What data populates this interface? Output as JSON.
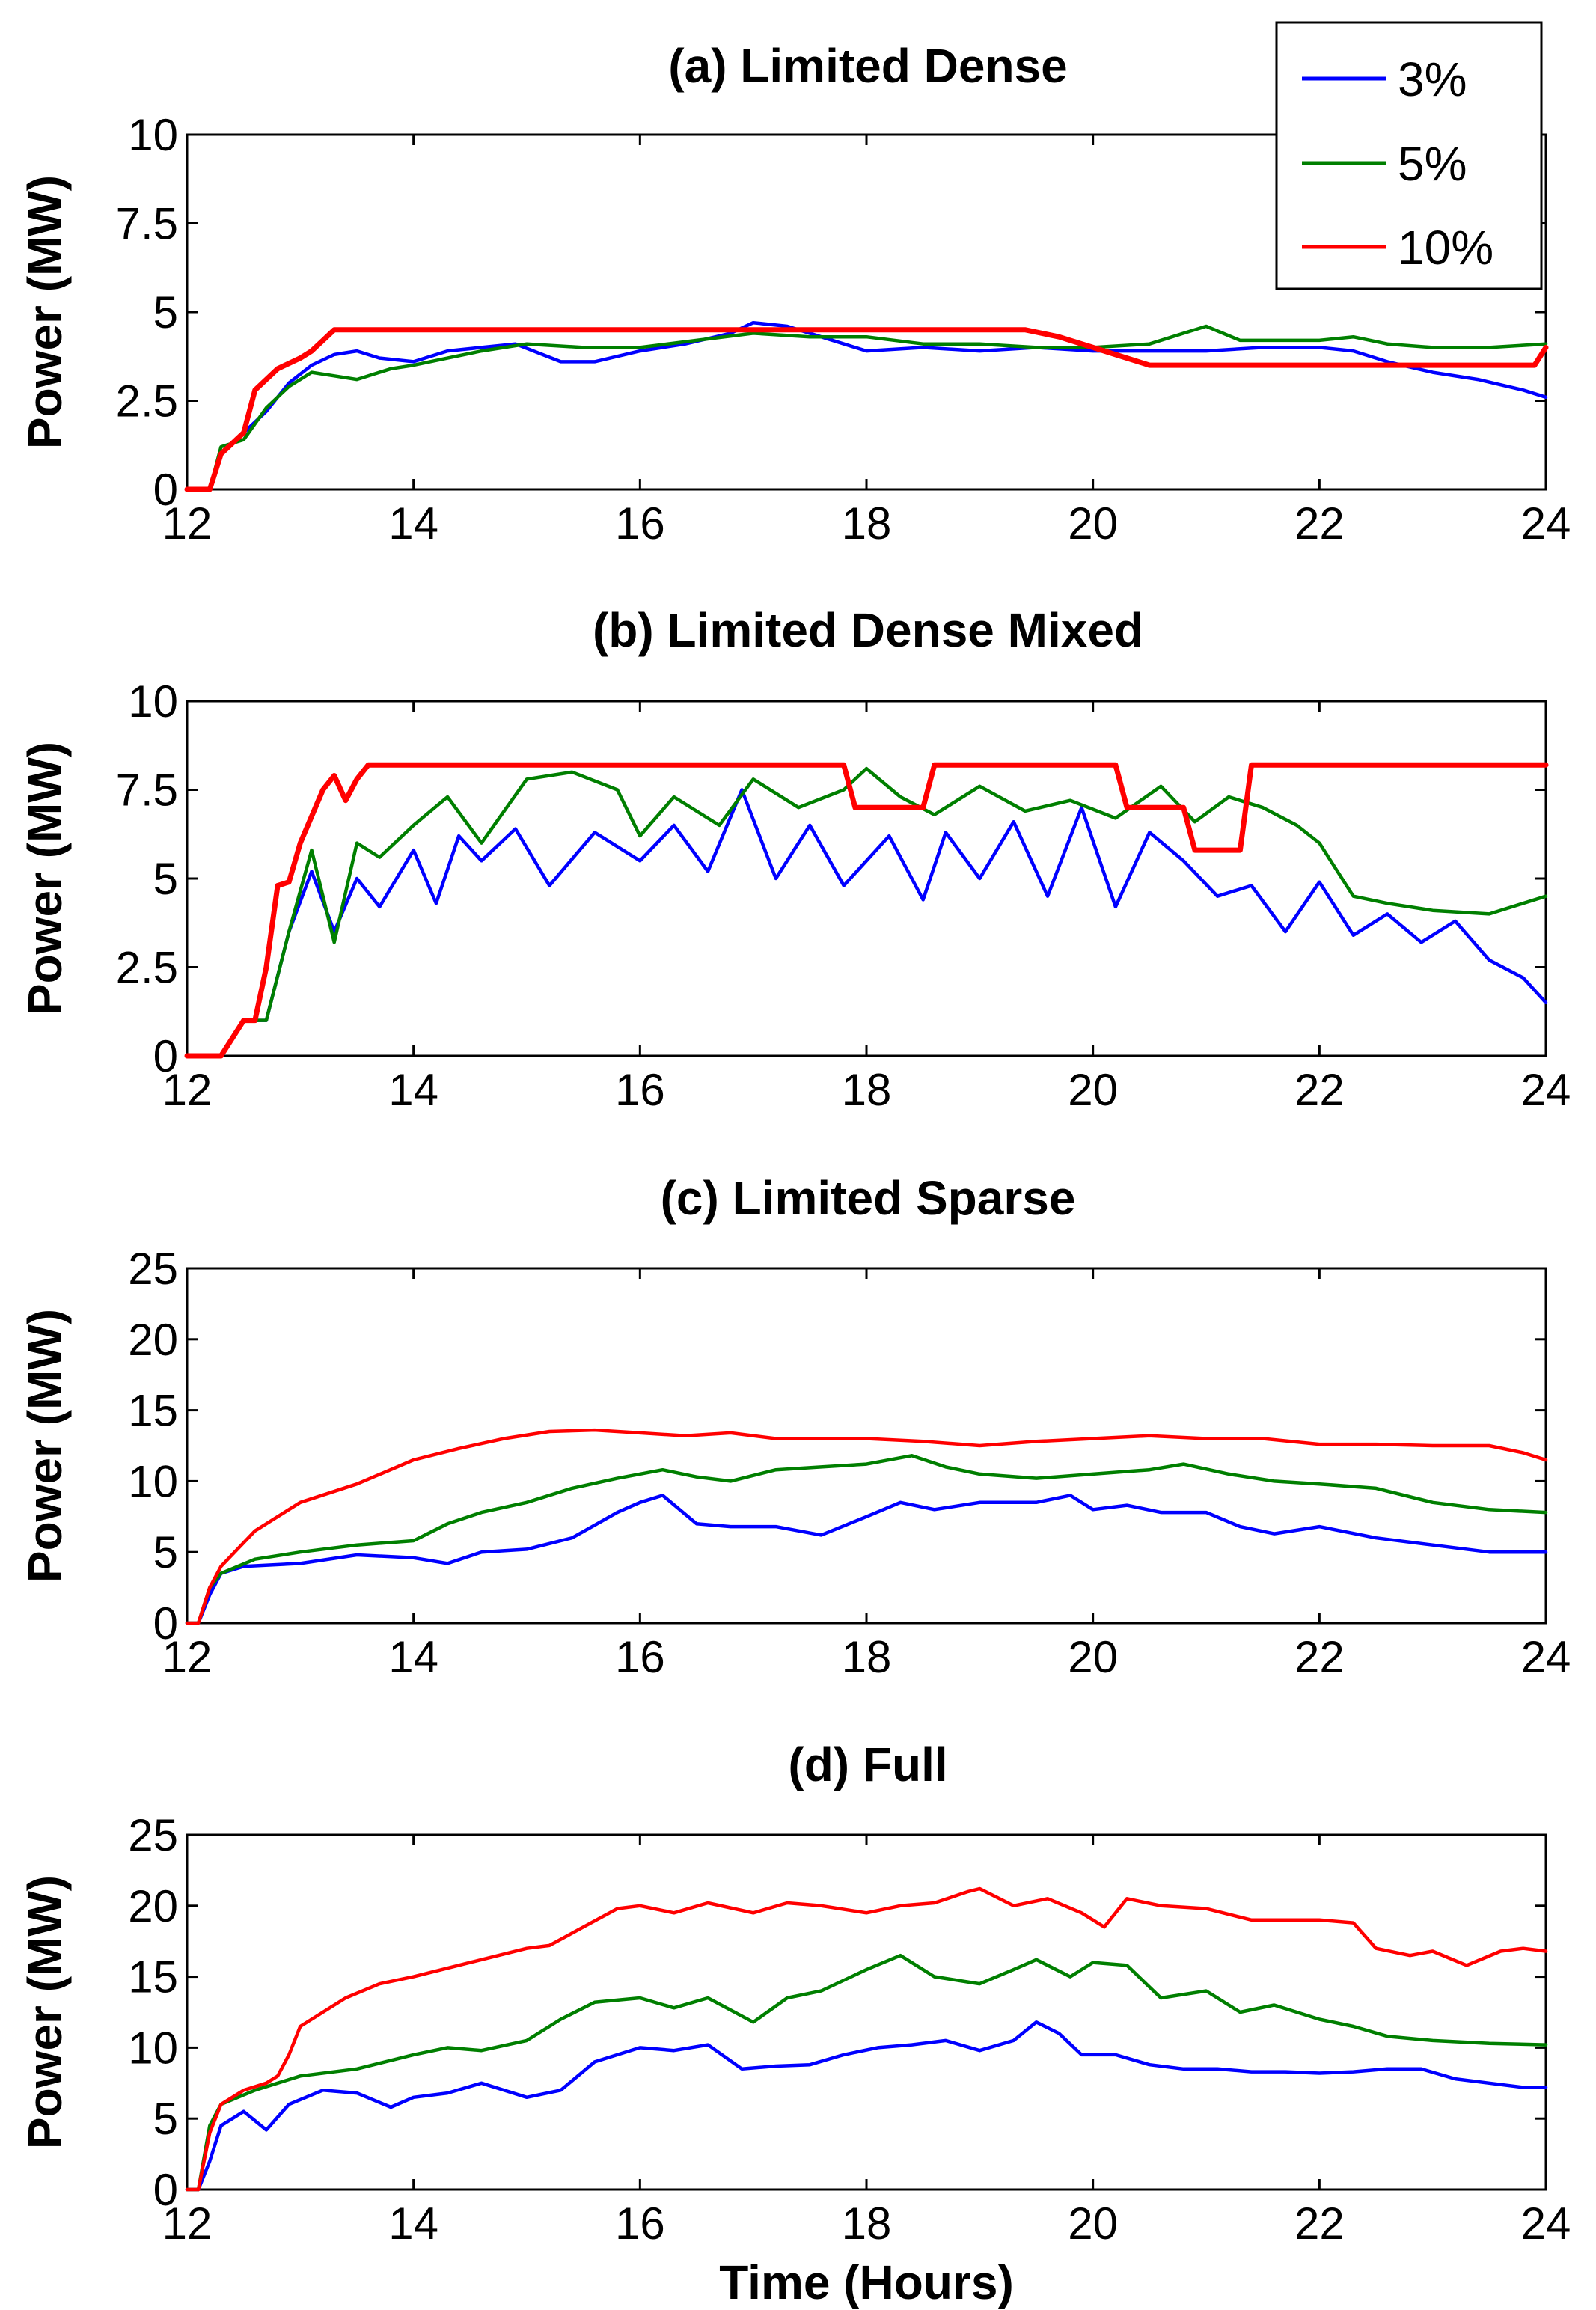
{
  "chart_data": [
    {
      "id": "a",
      "type": "line",
      "title": "(a) Limited Dense",
      "xlabel": "",
      "ylabel": "Power (MW)",
      "xlim": [
        12,
        24
      ],
      "ylim": [
        0,
        10
      ],
      "xticks": [
        "12",
        "14",
        "16",
        "18",
        "20",
        "22",
        "24"
      ],
      "yticks": [
        "0",
        "2.5",
        "5",
        "7.5",
        "10"
      ],
      "series": [
        {
          "name": "3%",
          "color": "#0000ff",
          "x": [
            12.0,
            12.2,
            12.3,
            12.5,
            12.7,
            12.9,
            13.1,
            13.3,
            13.5,
            13.7,
            14.0,
            14.3,
            14.6,
            14.9,
            15.3,
            15.6,
            16.0,
            16.4,
            16.8,
            17.0,
            17.3,
            17.6,
            18.0,
            18.5,
            19.0,
            19.5,
            20.0,
            20.5,
            21.0,
            21.5,
            22.0,
            22.3,
            22.6,
            23.0,
            23.4,
            23.8,
            24.0
          ],
          "values": [
            0,
            0,
            1.0,
            1.6,
            2.2,
            3.0,
            3.5,
            3.8,
            3.9,
            3.7,
            3.6,
            3.9,
            4.0,
            4.1,
            3.6,
            3.6,
            3.9,
            4.1,
            4.4,
            4.7,
            4.6,
            4.3,
            3.9,
            4.0,
            3.9,
            4.0,
            3.9,
            3.9,
            3.9,
            4.0,
            4.0,
            3.9,
            3.6,
            3.3,
            3.1,
            2.8,
            2.6
          ]
        },
        {
          "name": "5%",
          "color": "#007f00",
          "x": [
            12.0,
            12.2,
            12.3,
            12.5,
            12.7,
            12.9,
            13.1,
            13.3,
            13.5,
            13.8,
            14.0,
            14.3,
            14.6,
            15.0,
            15.5,
            16.0,
            16.5,
            17.0,
            17.5,
            18.0,
            18.5,
            19.0,
            19.5,
            20.0,
            20.5,
            20.8,
            21.0,
            21.3,
            21.7,
            22.0,
            22.3,
            22.6,
            23.0,
            23.5,
            24.0
          ],
          "values": [
            0,
            0,
            1.2,
            1.4,
            2.3,
            2.9,
            3.3,
            3.2,
            3.1,
            3.4,
            3.5,
            3.7,
            3.9,
            4.1,
            4.0,
            4.0,
            4.2,
            4.4,
            4.3,
            4.3,
            4.1,
            4.1,
            4.0,
            4.0,
            4.1,
            4.4,
            4.6,
            4.2,
            4.2,
            4.2,
            4.3,
            4.1,
            4.0,
            4.0,
            4.1
          ]
        },
        {
          "name": "10%",
          "color": "#ff0000",
          "x": [
            12.0,
            12.2,
            12.3,
            12.5,
            12.6,
            12.8,
            13.0,
            13.1,
            13.2,
            13.3,
            14.0,
            15.0,
            16.0,
            17.0,
            18.0,
            19.0,
            19.4,
            19.7,
            20.0,
            20.2,
            20.5,
            21.0,
            21.5,
            22.0,
            22.5,
            23.0,
            23.5,
            23.9,
            24.0
          ],
          "values": [
            0,
            0,
            1.0,
            1.6,
            2.8,
            3.4,
            3.7,
            3.9,
            4.2,
            4.5,
            4.5,
            4.5,
            4.5,
            4.5,
            4.5,
            4.5,
            4.5,
            4.3,
            4.0,
            3.8,
            3.5,
            3.5,
            3.5,
            3.5,
            3.5,
            3.5,
            3.5,
            3.5,
            4.0
          ]
        }
      ]
    },
    {
      "id": "b",
      "type": "line",
      "title": "(b) Limited Dense Mixed",
      "xlabel": "",
      "ylabel": "Power (MW)",
      "xlim": [
        12,
        24
      ],
      "ylim": [
        0,
        10
      ],
      "xticks": [
        "12",
        "14",
        "16",
        "18",
        "20",
        "22",
        "24"
      ],
      "yticks": [
        "0",
        "2.5",
        "5",
        "7.5",
        "10"
      ],
      "series": [
        {
          "name": "3%",
          "color": "#0000ff",
          "x": [
            12.0,
            12.3,
            12.5,
            12.7,
            12.9,
            13.1,
            13.3,
            13.5,
            13.7,
            14.0,
            14.2,
            14.4,
            14.6,
            14.9,
            15.2,
            15.6,
            16.0,
            16.3,
            16.6,
            16.9,
            17.2,
            17.5,
            17.8,
            18.0,
            18.2,
            18.5,
            18.7,
            19.0,
            19.3,
            19.6,
            19.9,
            20.2,
            20.5,
            20.8,
            21.1,
            21.4,
            21.7,
            22.0,
            22.3,
            22.6,
            22.9,
            23.2,
            23.5,
            23.8,
            24.0
          ],
          "values": [
            0,
            0,
            1.0,
            1.0,
            3.5,
            5.2,
            3.5,
            5.0,
            4.2,
            5.8,
            4.3,
            6.2,
            5.5,
            6.4,
            4.8,
            6.3,
            5.5,
            6.5,
            5.2,
            7.5,
            5.0,
            6.5,
            4.8,
            5.5,
            6.2,
            4.4,
            6.3,
            5.0,
            6.6,
            4.5,
            7.0,
            4.2,
            6.3,
            5.5,
            4.5,
            4.8,
            3.5,
            4.9,
            3.4,
            4.0,
            3.2,
            3.8,
            2.7,
            2.2,
            1.5
          ]
        },
        {
          "name": "5%",
          "color": "#007f00",
          "x": [
            12.0,
            12.3,
            12.5,
            12.7,
            12.9,
            13.1,
            13.3,
            13.5,
            13.7,
            14.0,
            14.3,
            14.6,
            15.0,
            15.4,
            15.8,
            16.0,
            16.3,
            16.7,
            17.0,
            17.4,
            17.8,
            18.0,
            18.3,
            18.6,
            19.0,
            19.4,
            19.8,
            20.2,
            20.6,
            20.9,
            21.2,
            21.5,
            21.8,
            22.0,
            22.3,
            22.6,
            23.0,
            23.5,
            23.8,
            24.0
          ],
          "values": [
            0,
            0,
            1.0,
            1.0,
            3.5,
            5.8,
            3.2,
            6.0,
            5.6,
            6.5,
            7.3,
            6.0,
            7.8,
            8.0,
            7.5,
            6.2,
            7.3,
            6.5,
            7.8,
            7.0,
            7.5,
            8.1,
            7.3,
            6.8,
            7.6,
            6.9,
            7.2,
            6.7,
            7.6,
            6.6,
            7.3,
            7.0,
            6.5,
            6.0,
            4.5,
            4.3,
            4.1,
            4.0,
            4.3,
            4.5
          ]
        },
        {
          "name": "10%",
          "color": "#ff0000",
          "x": [
            12.0,
            12.3,
            12.5,
            12.6,
            12.7,
            12.8,
            12.9,
            13.0,
            13.2,
            13.3,
            13.4,
            13.5,
            13.6,
            14.0,
            15.0,
            16.0,
            17.0,
            17.8,
            17.9,
            18.5,
            18.6,
            19.0,
            20.0,
            20.2,
            20.3,
            20.8,
            20.9,
            21.3,
            21.4,
            22.0,
            23.0,
            24.0
          ],
          "values": [
            0,
            0,
            1.0,
            1.0,
            2.5,
            4.8,
            4.9,
            6.0,
            7.5,
            7.9,
            7.2,
            7.8,
            8.2,
            8.2,
            8.2,
            8.2,
            8.2,
            8.2,
            7.0,
            7.0,
            8.2,
            8.2,
            8.2,
            8.2,
            7.0,
            7.0,
            5.8,
            5.8,
            8.2,
            8.2,
            8.2,
            8.2
          ]
        }
      ]
    },
    {
      "id": "c",
      "type": "line",
      "title": "(c) Limited Sparse",
      "xlabel": "",
      "ylabel": "Power (MW)",
      "xlim": [
        12,
        24
      ],
      "ylim": [
        0,
        25
      ],
      "xticks": [
        "12",
        "14",
        "16",
        "18",
        "20",
        "22",
        "24"
      ],
      "yticks": [
        "0",
        "5",
        "10",
        "15",
        "20",
        "25"
      ],
      "series": [
        {
          "name": "3%",
          "color": "#0000ff",
          "x": [
            12.0,
            12.1,
            12.2,
            12.3,
            12.5,
            13.0,
            13.5,
            14.0,
            14.3,
            14.6,
            15.0,
            15.4,
            15.8,
            16.0,
            16.2,
            16.5,
            16.8,
            17.2,
            17.6,
            18.0,
            18.3,
            18.6,
            19.0,
            19.5,
            19.8,
            20.0,
            20.3,
            20.6,
            21.0,
            21.3,
            21.6,
            22.0,
            22.5,
            23.0,
            23.5,
            24.0
          ],
          "values": [
            0,
            0,
            2.0,
            3.5,
            4.0,
            4.2,
            4.8,
            4.6,
            4.2,
            5.0,
            5.2,
            6.0,
            7.8,
            8.5,
            9.0,
            7.0,
            6.8,
            6.8,
            6.2,
            7.5,
            8.5,
            8.0,
            8.5,
            8.5,
            9.0,
            8.0,
            8.3,
            7.8,
            7.8,
            6.8,
            6.3,
            6.8,
            6.0,
            5.5,
            5.0,
            5.0
          ]
        },
        {
          "name": "5%",
          "color": "#007f00",
          "x": [
            12.0,
            12.1,
            12.2,
            12.3,
            12.6,
            13.0,
            13.5,
            14.0,
            14.3,
            14.6,
            15.0,
            15.4,
            15.8,
            16.2,
            16.5,
            16.8,
            17.2,
            17.6,
            18.0,
            18.4,
            18.7,
            19.0,
            19.5,
            20.0,
            20.5,
            20.8,
            21.2,
            21.6,
            22.0,
            22.5,
            23.0,
            23.5,
            24.0
          ],
          "values": [
            0,
            0,
            2.5,
            3.5,
            4.5,
            5.0,
            5.5,
            5.8,
            7.0,
            7.8,
            8.5,
            9.5,
            10.2,
            10.8,
            10.3,
            10.0,
            10.8,
            11.0,
            11.2,
            11.8,
            11.0,
            10.5,
            10.2,
            10.5,
            10.8,
            11.2,
            10.5,
            10.0,
            9.8,
            9.5,
            8.5,
            8.0,
            7.8
          ]
        },
        {
          "name": "10%",
          "color": "#ff0000",
          "x": [
            12.0,
            12.1,
            12.2,
            12.3,
            12.6,
            13.0,
            13.5,
            14.0,
            14.4,
            14.8,
            15.2,
            15.6,
            16.0,
            16.4,
            16.8,
            17.2,
            17.6,
            18.0,
            18.5,
            19.0,
            19.5,
            20.0,
            20.5,
            21.0,
            21.5,
            22.0,
            22.5,
            23.0,
            23.5,
            23.8,
            24.0
          ],
          "values": [
            0,
            0,
            2.5,
            4.0,
            6.5,
            8.5,
            9.8,
            11.5,
            12.3,
            13.0,
            13.5,
            13.6,
            13.4,
            13.2,
            13.4,
            13.0,
            13.0,
            13.0,
            12.8,
            12.5,
            12.8,
            13.0,
            13.2,
            13.0,
            13.0,
            12.6,
            12.6,
            12.5,
            12.5,
            12.0,
            11.5
          ]
        }
      ]
    },
    {
      "id": "d",
      "type": "line",
      "title": "(d) Full",
      "xlabel": "Time (Hours)",
      "ylabel": "Power (MW)",
      "xlim": [
        12,
        24
      ],
      "ylim": [
        0,
        25
      ],
      "xticks": [
        "12",
        "14",
        "16",
        "18",
        "20",
        "22",
        "24"
      ],
      "yticks": [
        "0",
        "5",
        "10",
        "15",
        "20",
        "25"
      ],
      "series": [
        {
          "name": "3%",
          "color": "#0000ff",
          "x": [
            12.0,
            12.1,
            12.2,
            12.3,
            12.5,
            12.7,
            12.9,
            13.2,
            13.5,
            13.8,
            14.0,
            14.3,
            14.6,
            15.0,
            15.3,
            15.6,
            16.0,
            16.3,
            16.6,
            16.9,
            17.2,
            17.5,
            17.8,
            18.1,
            18.4,
            18.7,
            19.0,
            19.3,
            19.5,
            19.7,
            19.9,
            20.2,
            20.5,
            20.8,
            21.1,
            21.4,
            21.7,
            22.0,
            22.3,
            22.6,
            22.9,
            23.2,
            23.5,
            23.8,
            24.0
          ],
          "values": [
            0,
            0,
            2.0,
            4.5,
            5.5,
            4.2,
            6.0,
            7.0,
            6.8,
            5.8,
            6.5,
            6.8,
            7.5,
            6.5,
            7.0,
            9.0,
            10.0,
            9.8,
            10.2,
            8.5,
            8.7,
            8.8,
            9.5,
            10.0,
            10.2,
            10.5,
            9.8,
            10.5,
            11.8,
            11.0,
            9.5,
            9.5,
            8.8,
            8.5,
            8.5,
            8.3,
            8.3,
            8.2,
            8.3,
            8.5,
            8.5,
            7.8,
            7.5,
            7.2,
            7.2
          ]
        },
        {
          "name": "5%",
          "color": "#007f00",
          "x": [
            12.0,
            12.1,
            12.2,
            12.3,
            12.6,
            13.0,
            13.5,
            14.0,
            14.3,
            14.6,
            15.0,
            15.3,
            15.6,
            16.0,
            16.3,
            16.6,
            17.0,
            17.3,
            17.6,
            18.0,
            18.3,
            18.6,
            19.0,
            19.3,
            19.5,
            19.8,
            20.0,
            20.3,
            20.6,
            21.0,
            21.3,
            21.6,
            22.0,
            22.3,
            22.6,
            23.0,
            23.5,
            24.0
          ],
          "values": [
            0,
            0,
            4.5,
            6.0,
            7.0,
            8.0,
            8.5,
            9.5,
            10.0,
            9.8,
            10.5,
            12.0,
            13.2,
            13.5,
            12.8,
            13.5,
            11.8,
            13.5,
            14.0,
            15.5,
            16.5,
            15.0,
            14.5,
            15.5,
            16.2,
            15.0,
            16.0,
            15.8,
            13.5,
            14.0,
            12.5,
            13.0,
            12.0,
            11.5,
            10.8,
            10.5,
            10.3,
            10.2
          ]
        },
        {
          "name": "10%",
          "color": "#ff0000",
          "x": [
            12.0,
            12.1,
            12.2,
            12.3,
            12.5,
            12.7,
            12.8,
            12.9,
            13.0,
            13.2,
            13.4,
            13.7,
            14.0,
            14.5,
            15.0,
            15.2,
            15.5,
            15.8,
            16.0,
            16.3,
            16.6,
            17.0,
            17.3,
            17.6,
            18.0,
            18.3,
            18.6,
            18.9,
            19.0,
            19.3,
            19.6,
            19.9,
            20.1,
            20.3,
            20.6,
            21.0,
            21.4,
            21.8,
            22.0,
            22.3,
            22.5,
            22.8,
            23.0,
            23.3,
            23.6,
            23.8,
            24.0
          ],
          "values": [
            0,
            0,
            4.0,
            6.0,
            7.0,
            7.5,
            8.0,
            9.5,
            11.5,
            12.5,
            13.5,
            14.5,
            15.0,
            16.0,
            17.0,
            17.2,
            18.5,
            19.8,
            20.0,
            19.5,
            20.2,
            19.5,
            20.2,
            20.0,
            19.5,
            20.0,
            20.2,
            21.0,
            21.2,
            20.0,
            20.5,
            19.5,
            18.5,
            20.5,
            20.0,
            19.8,
            19.0,
            19.0,
            19.0,
            18.8,
            17.0,
            16.5,
            16.8,
            15.8,
            16.8,
            17.0,
            16.8
          ]
        }
      ]
    }
  ]
}
